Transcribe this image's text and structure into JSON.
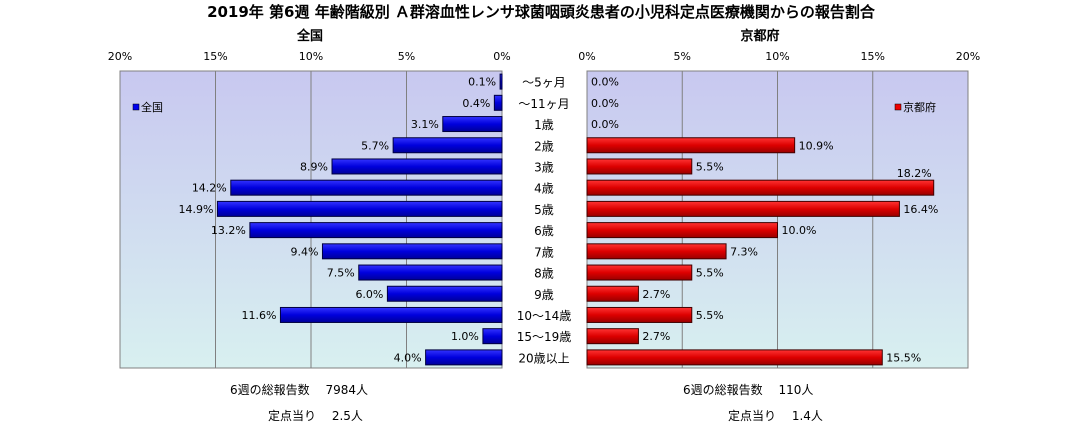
{
  "title": "2019年 第6週 年齢階級別 Ａ群溶血性レンサ球菌咽頭炎患者の小児科定点医療機関からの報告割合",
  "colors": {
    "national": "#0000ee",
    "kyoto": "#ee0000",
    "plot_bg_top": "#c8c8f0",
    "plot_bg_bottom": "#d8f0f0",
    "axis": "#808080"
  },
  "chart_data": [
    {
      "type": "bar",
      "orientation": "horizontal",
      "title": "全国",
      "legend": "全国",
      "legend_position": "top-left",
      "xlim": [
        0,
        20
      ],
      "x_reversed": true,
      "ticks": [
        "20%",
        "15%",
        "10%",
        "5%",
        "0%"
      ],
      "grid": true,
      "categories": [
        "～5ヶ月",
        "～11ヶ月",
        "1歳",
        "2歳",
        "3歳",
        "4歳",
        "5歳",
        "6歳",
        "7歳",
        "8歳",
        "9歳",
        "10～14歳",
        "15～19歳",
        "20歳以上"
      ],
      "values": [
        0.1,
        0.4,
        3.1,
        5.7,
        8.9,
        14.2,
        14.9,
        13.2,
        9.4,
        7.5,
        6.0,
        11.6,
        1.0,
        4.0
      ],
      "labels": [
        "0.1%",
        "0.4%",
        "3.1%",
        "5.7%",
        "8.9%",
        "14.2%",
        "14.9%",
        "13.2%",
        "9.4%",
        "7.5%",
        "6.0%",
        "11.6%",
        "1.0%",
        "4.0%"
      ]
    },
    {
      "type": "bar",
      "orientation": "horizontal",
      "title": "京都府",
      "legend": "京都府",
      "legend_position": "top-right",
      "xlim": [
        0,
        20
      ],
      "x_reversed": false,
      "ticks": [
        "0%",
        "5%",
        "10%",
        "15%",
        "20%"
      ],
      "grid": true,
      "categories": [
        "～5ヶ月",
        "～11ヶ月",
        "1歳",
        "2歳",
        "3歳",
        "4歳",
        "5歳",
        "6歳",
        "7歳",
        "8歳",
        "9歳",
        "10～14歳",
        "15～19歳",
        "20歳以上"
      ],
      "values": [
        0.0,
        0.0,
        0.0,
        10.9,
        5.5,
        18.2,
        16.4,
        10.0,
        7.3,
        5.5,
        2.7,
        5.5,
        2.7,
        15.5
      ],
      "labels": [
        "0.0%",
        "0.0%",
        "0.0%",
        "10.9%",
        "5.5%",
        "18.2%",
        "16.4%",
        "10.0%",
        "7.3%",
        "5.5%",
        "2.7%",
        "5.5%",
        "2.7%",
        "15.5%"
      ]
    }
  ],
  "footer": {
    "national_total": "6週の総報告数　 7984人",
    "national_per_site": "定点当り　 2.5人",
    "kyoto_total": "6週の総報告数　 110人",
    "kyoto_per_site": "定点当り　 1.4人"
  }
}
